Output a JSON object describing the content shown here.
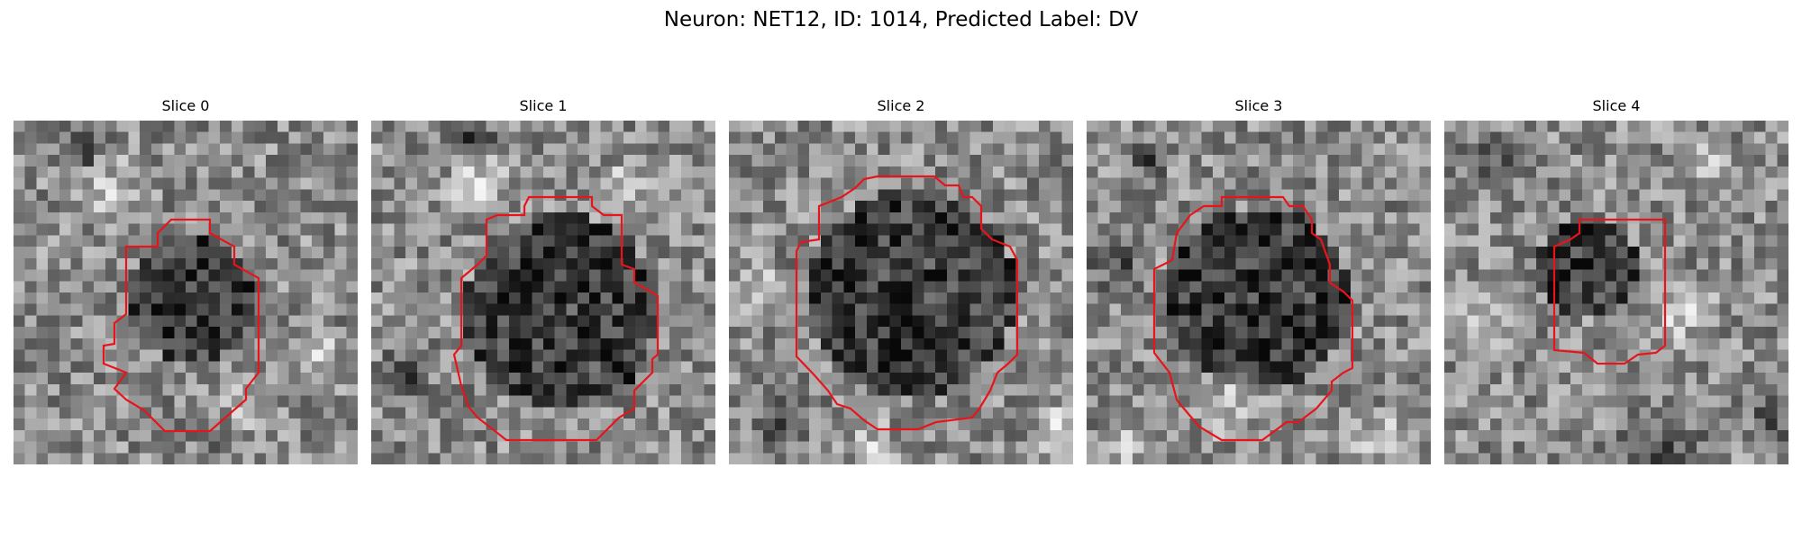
{
  "figure": {
    "title": "Neuron: NET12, ID: 1014, Predicted Label: DV"
  },
  "colors": {
    "contour": "#e8141b",
    "background": "#ffffff",
    "colormap": "grayscale"
  },
  "panels": [
    {
      "title": "Slice 0"
    },
    {
      "title": "Slice 1"
    },
    {
      "title": "Slice 2"
    },
    {
      "title": "Slice 3"
    },
    {
      "title": "Slice 4"
    }
  ]
}
